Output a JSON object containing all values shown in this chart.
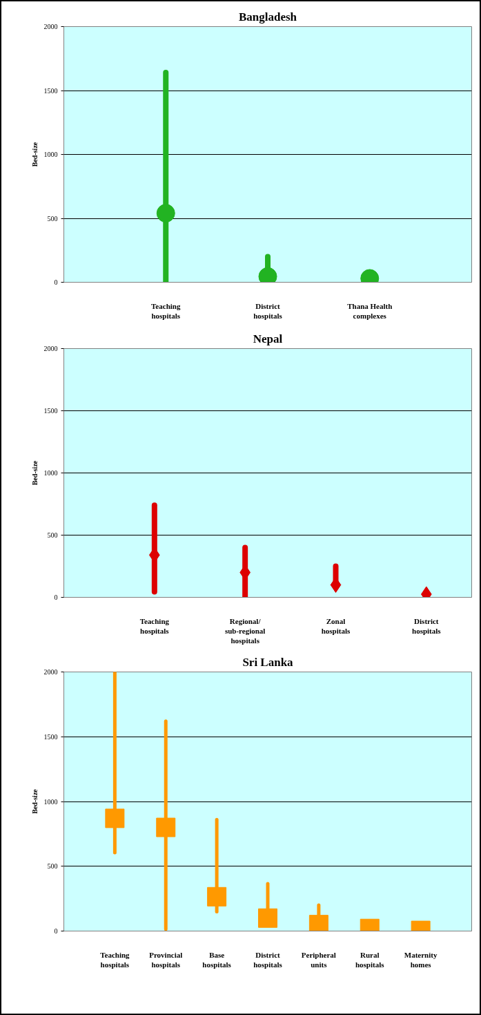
{
  "chart_data": [
    {
      "type": "scatter",
      "title": "Bangladesh",
      "ylabel": "Bed-size",
      "categories": [
        "Teaching hospitals",
        "District hospitals",
        "Thana Health complexes"
      ],
      "values": [
        540,
        45,
        30
      ],
      "errors": [
        [
          0,
          1640
        ],
        [
          0,
          200
        ],
        null
      ],
      "color": "#22b322",
      "marker": "circle",
      "ylim": [
        0,
        2000
      ],
      "yticks": [
        0,
        500,
        1000,
        1500,
        2000
      ],
      "grid": "y"
    },
    {
      "type": "scatter",
      "title": "Nepal",
      "ylabel": "Bed-size",
      "categories": [
        "Teaching hospitals",
        "Regional/ sub-regional hospitals",
        "Zonal hospitals",
        "District hospitals"
      ],
      "values": [
        340,
        200,
        100,
        25
      ],
      "errors": [
        [
          45,
          740
        ],
        [
          5,
          400
        ],
        [
          100,
          250
        ],
        null
      ],
      "color": "#dd0000",
      "marker": "diamond",
      "ylim": [
        0,
        2000
      ],
      "yticks": [
        0,
        500,
        1000,
        1500,
        2000
      ],
      "grid": "y"
    },
    {
      "type": "scatter",
      "title": "Sri Lanka",
      "ylabel": "Bed-size",
      "categories": [
        "Teaching hospitals",
        "Provincial hospitals",
        "Base hospitals",
        "District hospitals",
        "Peripheral units",
        "Rural hospitals",
        "Maternity homes"
      ],
      "values": [
        870,
        800,
        265,
        100,
        50,
        20,
        5
      ],
      "errors": [
        [
          605,
          2000
        ],
        [
          15,
          1620
        ],
        [
          150,
          860
        ],
        [
          100,
          365
        ],
        [
          50,
          200
        ],
        null,
        null
      ],
      "color": "#ff9900",
      "marker": "square",
      "ylim": [
        0,
        2000
      ],
      "yticks": [
        0,
        500,
        1000,
        1500,
        2000
      ],
      "grid": "y"
    }
  ]
}
